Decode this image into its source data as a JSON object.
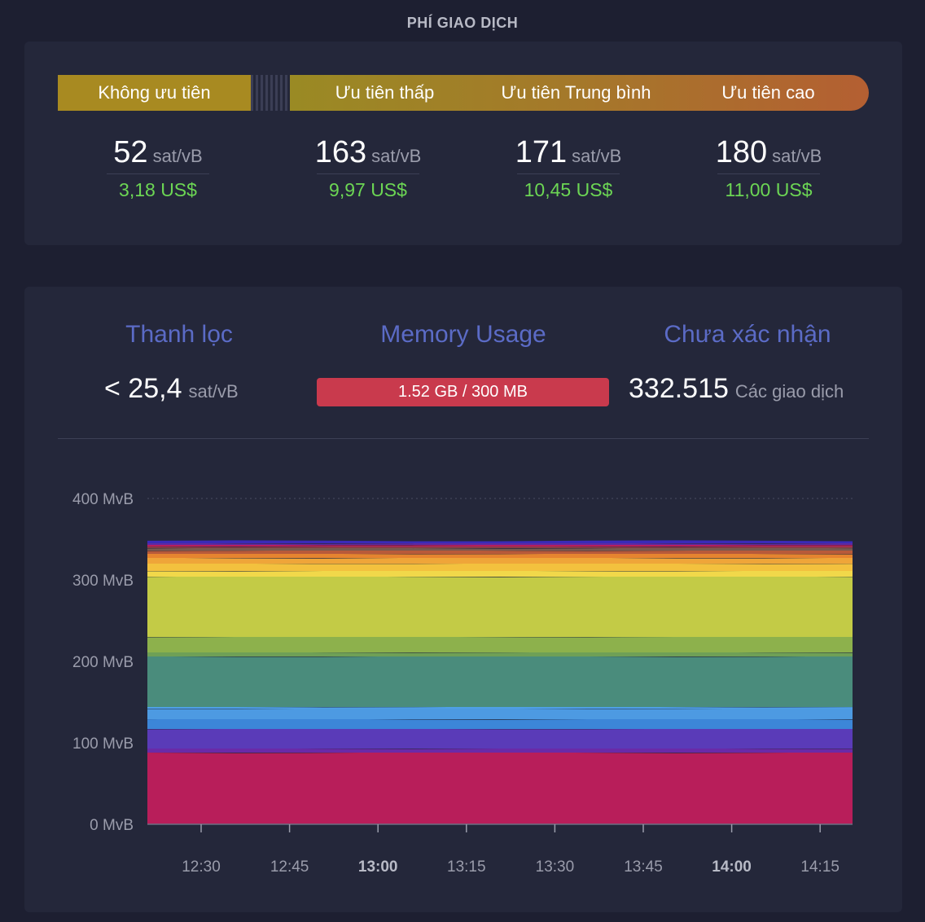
{
  "section_title": "PHÍ GIAO DỊCH",
  "priority": {
    "none": "Không ưu tiên",
    "low": "Ưu tiên thấp",
    "medium": "Ưu tiên Trung bình",
    "high": "Ưu tiên cao"
  },
  "fees": [
    {
      "rate": "52",
      "unit": "sat/vB",
      "usd": "3,18 US$"
    },
    {
      "rate": "163",
      "unit": "sat/vB",
      "usd": "9,97 US$"
    },
    {
      "rate": "171",
      "unit": "sat/vB",
      "usd": "10,45 US$"
    },
    {
      "rate": "180",
      "unit": "sat/vB",
      "usd": "11,00 US$"
    }
  ],
  "mempool": {
    "purge_title": "Thanh lọc",
    "purge_value": "< 25,4",
    "purge_unit": "sat/vB",
    "memory_title": "Memory Usage",
    "memory_value": "1.52 GB / 300 MB",
    "memory_color": "#c93a4d",
    "unconfirmed_title": "Chưa xác nhận",
    "unconfirmed_value": "332.515",
    "unconfirmed_unit": "Các giao dịch"
  },
  "chart_data": {
    "type": "area",
    "stacked": true,
    "y_unit": "MvB",
    "ylim": [
      0,
      400
    ],
    "y_ticks": [
      "0 MvB",
      "100 MvB",
      "200 MvB",
      "300 MvB",
      "400 MvB"
    ],
    "x_ticks": [
      {
        "label": "12:30",
        "bold": false
      },
      {
        "label": "12:45",
        "bold": false
      },
      {
        "label": "13:00",
        "bold": true
      },
      {
        "label": "13:15",
        "bold": false
      },
      {
        "label": "13:30",
        "bold": false
      },
      {
        "label": "13:45",
        "bold": false
      },
      {
        "label": "14:00",
        "bold": true
      },
      {
        "label": "14:15",
        "bold": false
      }
    ],
    "layers": [
      {
        "color": "#b81e5a",
        "value": 88
      },
      {
        "color": "#6a2aa8",
        "value": 5
      },
      {
        "color": "#5a3bb8",
        "value": 24
      },
      {
        "color": "#3c86d8",
        "value": 12
      },
      {
        "color": "#4d9ae2",
        "value": 13
      },
      {
        "color": "#4ea0e6",
        "value": 2
      },
      {
        "color": "#4a8c7c",
        "value": 62
      },
      {
        "color": "#6fa056",
        "value": 5
      },
      {
        "color": "#8db14c",
        "value": 19
      },
      {
        "color": "#c3cb46",
        "value": 74
      },
      {
        "color": "#f1d84a",
        "value": 7
      },
      {
        "color": "#f3c13e",
        "value": 9
      },
      {
        "color": "#efa539",
        "value": 7
      },
      {
        "color": "#e6842f",
        "value": 5
      },
      {
        "color": "#b85a3a",
        "value": 4
      },
      {
        "color": "#7a5a4e",
        "value": 3
      },
      {
        "color": "#8d3b46",
        "value": 2
      },
      {
        "color": "#b51e5e",
        "value": 2
      },
      {
        "color": "#5e2aa2",
        "value": 2
      },
      {
        "color": "#3a2ab8",
        "value": 3
      }
    ]
  }
}
